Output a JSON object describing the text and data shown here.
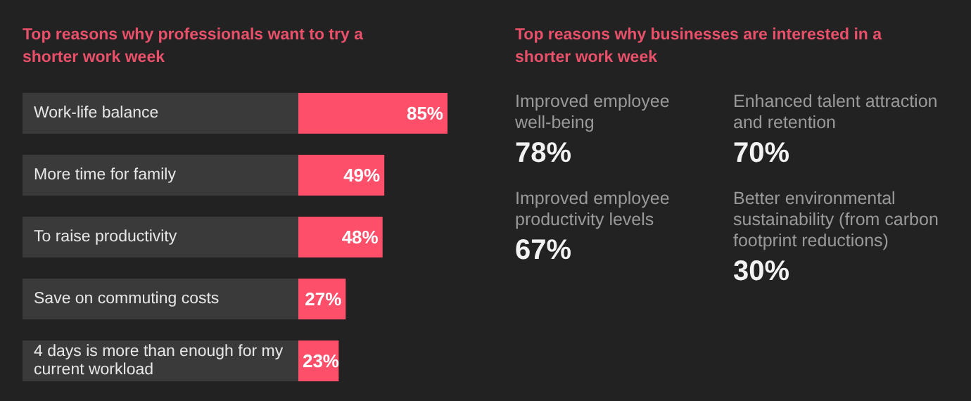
{
  "chart_data": [
    {
      "type": "bar",
      "orientation": "horizontal",
      "title": "Top reasons why professionals want to try a shorter work week",
      "categories": [
        "Work-life balance",
        "More time for family",
        "To raise productivity",
        "Save on commuting costs",
        "4 days is more than enough for my current workload"
      ],
      "values": [
        85,
        49,
        48,
        27,
        23
      ],
      "value_labels": [
        "85%",
        "49%",
        "48%",
        "27%",
        "23%"
      ],
      "color": "#fe4f6a"
    },
    {
      "type": "other",
      "title": "Top reasons why businesses are interested in a shorter work week",
      "categories": [
        "Improved employee well-being",
        "Enhanced talent attraction and retention",
        "Improved employee productivity levels",
        "Better environmental sustainability (from carbon footprint reductions)"
      ],
      "value_labels": [
        "78%",
        "70%",
        "67%",
        "30%"
      ]
    }
  ]
}
